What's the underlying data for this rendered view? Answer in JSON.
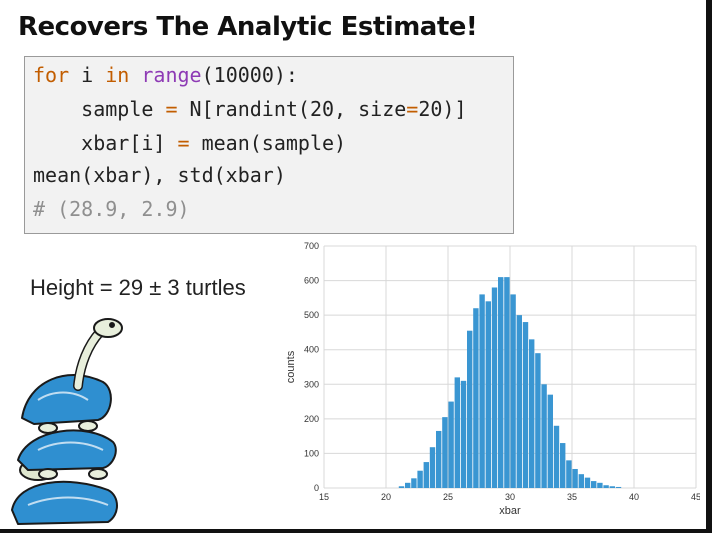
{
  "slide": {
    "title": "Recovers The Analytic Estimate!",
    "height_label": "Height = 29 ± 3 turtles",
    "illustration": "stacked-turtles-illustration"
  },
  "code": {
    "line1": {
      "kw_for": "for",
      "var": " i ",
      "kw_in": "in",
      "space": " ",
      "fn_range": "range",
      "rest": "(10000):"
    },
    "line2": {
      "a": "    sample ",
      "eq": "=",
      "b": " N[randint(20, size",
      "eq2": "=",
      "c": "20)]"
    },
    "line3": {
      "a": "    xbar[i] ",
      "eq": "=",
      "b": " mean(sample)"
    },
    "line4": "mean(xbar), std(xbar)",
    "line5": "# (28.9, 2.9)"
  },
  "colors": {
    "bar": "#3a96d2",
    "keyword": "#c25d00",
    "builtin": "#8e3bb5",
    "comment": "#8f8f8f",
    "turtle_blue": "#2f8fd0"
  },
  "chart_data": {
    "type": "bar",
    "xlabel": "xbar",
    "ylabel": "counts",
    "xlim": [
      15,
      45
    ],
    "ylim": [
      0,
      700
    ],
    "xticks": [
      15,
      20,
      25,
      30,
      35,
      40,
      45
    ],
    "yticks": [
      0,
      100,
      200,
      300,
      400,
      500,
      600,
      700
    ],
    "grid": true,
    "bin_width": 0.5,
    "bin_starts": [
      21.0,
      21.5,
      22.0,
      22.5,
      23.0,
      23.5,
      24.0,
      24.5,
      25.0,
      25.5,
      26.0,
      26.5,
      27.0,
      27.5,
      28.0,
      28.5,
      29.0,
      29.5,
      30.0,
      30.5,
      31.0,
      31.5,
      32.0,
      32.5,
      33.0,
      33.5,
      34.0,
      34.5,
      35.0,
      35.5,
      36.0,
      36.5,
      37.0,
      37.5,
      38.0,
      38.5
    ],
    "values": [
      5,
      15,
      28,
      50,
      75,
      118,
      165,
      205,
      250,
      320,
      310,
      455,
      520,
      560,
      540,
      580,
      610,
      610,
      560,
      500,
      480,
      430,
      390,
      300,
      270,
      180,
      130,
      80,
      55,
      40,
      30,
      20,
      15,
      8,
      5,
      3
    ]
  }
}
